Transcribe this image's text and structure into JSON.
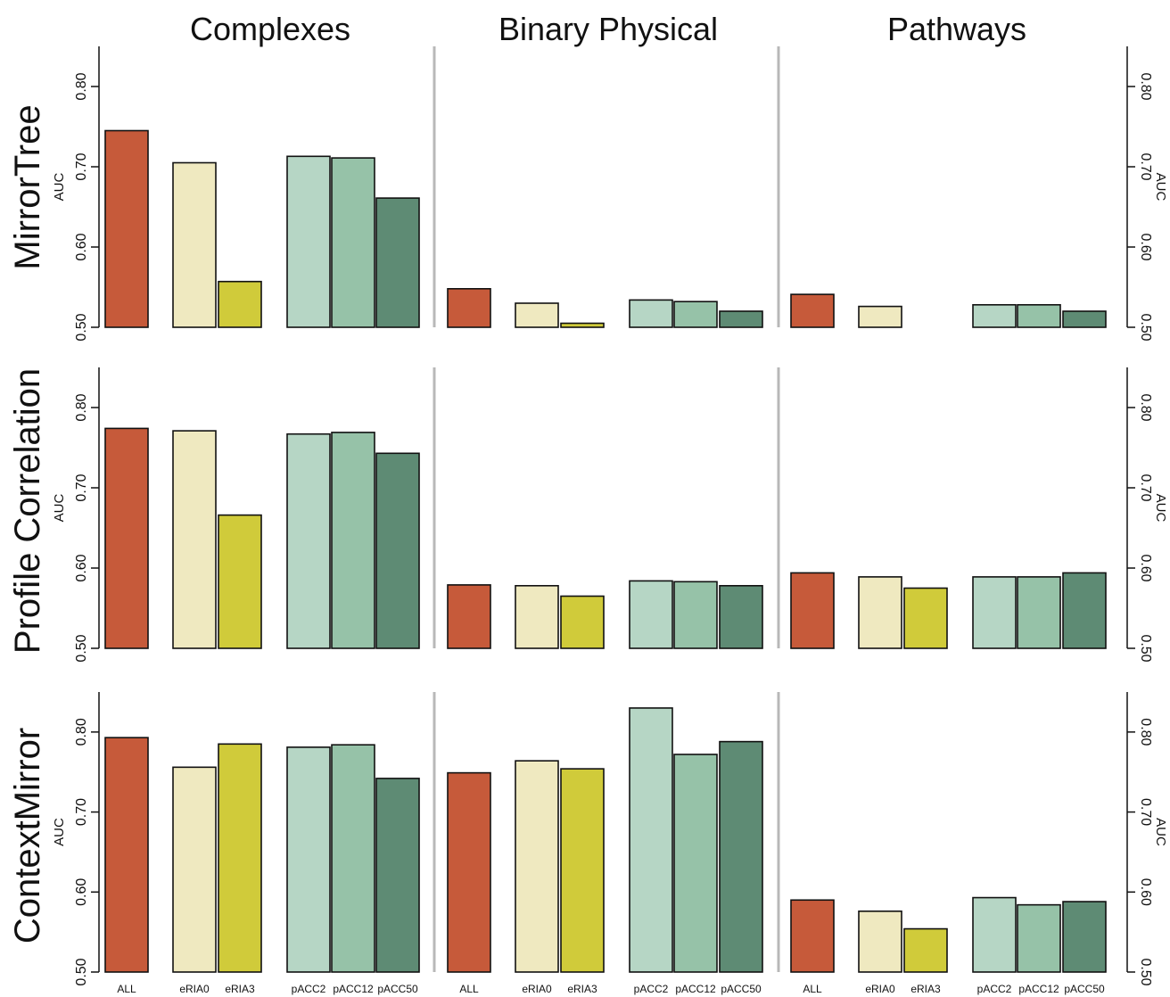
{
  "chart_data": {
    "type": "bar",
    "column_titles": [
      "Complexes",
      "Binary Physical",
      "Pathways"
    ],
    "row_titles": [
      "MirrorTree",
      "Profile Correlation",
      "ContextMirror"
    ],
    "categories": [
      "ALL",
      "eRIA0",
      "eRIA3",
      "pACC2",
      "pACC12",
      "pACC50"
    ],
    "ylabel": "AUC",
    "ylim": [
      0.5,
      0.85
    ],
    "yticks": [
      0.5,
      0.6,
      0.7,
      0.8
    ],
    "ytick_labels": [
      "0.50",
      "0.60",
      "0.70",
      "0.80"
    ],
    "category_colors": [
      "#c65a3a",
      "#efe9c0",
      "#d0cb3a",
      "#b6d6c5",
      "#96c2a8",
      "#5e8b74"
    ],
    "panels": [
      {
        "row": "MirrorTree",
        "column": "Complexes",
        "values": [
          0.745,
          0.705,
          0.557,
          0.713,
          0.711,
          0.661
        ]
      },
      {
        "row": "MirrorTree",
        "column": "Binary Physical",
        "values": [
          0.548,
          0.53,
          0.505,
          0.534,
          0.532,
          0.52
        ]
      },
      {
        "row": "MirrorTree",
        "column": "Pathways",
        "values": [
          0.541,
          0.526,
          null,
          0.528,
          0.528,
          0.52
        ]
      },
      {
        "row": "Profile Correlation",
        "column": "Complexes",
        "values": [
          0.774,
          0.771,
          0.666,
          0.767,
          0.769,
          0.743
        ]
      },
      {
        "row": "Profile Correlation",
        "column": "Binary Physical",
        "values": [
          0.579,
          0.578,
          0.565,
          0.584,
          0.583,
          0.578
        ]
      },
      {
        "row": "Profile Correlation",
        "column": "Pathways",
        "values": [
          0.594,
          0.589,
          0.575,
          0.589,
          0.589,
          0.594
        ]
      },
      {
        "row": "ContextMirror",
        "column": "Complexes",
        "values": [
          0.793,
          0.756,
          0.785,
          0.781,
          0.784,
          0.742
        ]
      },
      {
        "row": "ContextMirror",
        "column": "Binary Physical",
        "values": [
          0.749,
          0.764,
          0.754,
          0.83,
          0.772,
          0.788
        ]
      },
      {
        "row": "ContextMirror",
        "column": "Pathways",
        "values": [
          0.59,
          0.576,
          0.554,
          0.593,
          0.584,
          0.588
        ]
      }
    ],
    "grid": false,
    "legend": "none"
  }
}
